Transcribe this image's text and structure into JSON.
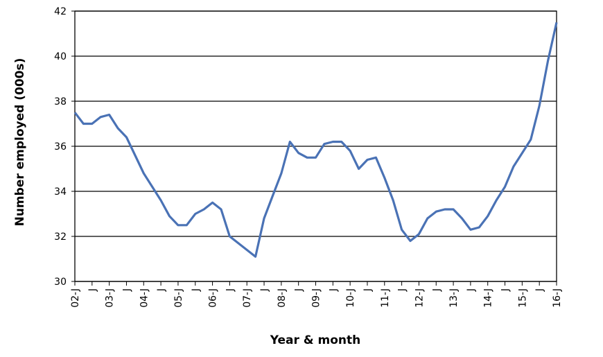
{
  "chart_data": {
    "type": "line",
    "x_label": "Year & month",
    "y_label": "Number employed (000s)",
    "categories": [
      "02-J",
      null,
      "J",
      null,
      "03-J",
      null,
      "J",
      null,
      "04-J",
      null,
      "J",
      null,
      "05-J",
      null,
      "J",
      null,
      "06-J",
      null,
      "J",
      null,
      "07-J",
      null,
      "J",
      null,
      "08-J",
      null,
      "J",
      null,
      "09-J",
      null,
      "J",
      null,
      "10-J",
      null,
      "J",
      null,
      "11-J",
      null,
      "J",
      null,
      "12-J",
      null,
      "J",
      null,
      "13-J",
      null,
      "J",
      null,
      "14-J",
      null,
      "J",
      null,
      "15-J",
      null,
      "J",
      null,
      "16-J"
    ],
    "series": [
      {
        "color": "#4a72b5",
        "values": [
          37.5,
          37.0,
          37.0,
          37.3,
          37.4,
          36.8,
          36.4,
          35.6,
          34.8,
          34.2,
          33.6,
          32.9,
          32.5,
          32.5,
          33.0,
          33.2,
          33.5,
          33.2,
          32.0,
          31.7,
          31.4,
          31.1,
          32.8,
          33.8,
          34.8,
          36.2,
          35.7,
          35.5,
          35.5,
          36.1,
          36.2,
          36.2,
          35.8,
          35.0,
          35.4,
          35.5,
          34.6,
          33.6,
          32.3,
          31.8,
          32.1,
          32.8,
          33.1,
          33.2,
          33.2,
          32.8,
          32.3,
          32.4,
          32.9,
          33.6,
          34.2,
          35.1,
          35.7,
          36.3,
          37.8,
          39.8,
          41.5
        ]
      }
    ],
    "ylim": [
      30,
      42
    ],
    "yticks": [
      30,
      32,
      34,
      36,
      38,
      40,
      42
    ],
    "grid": true
  }
}
